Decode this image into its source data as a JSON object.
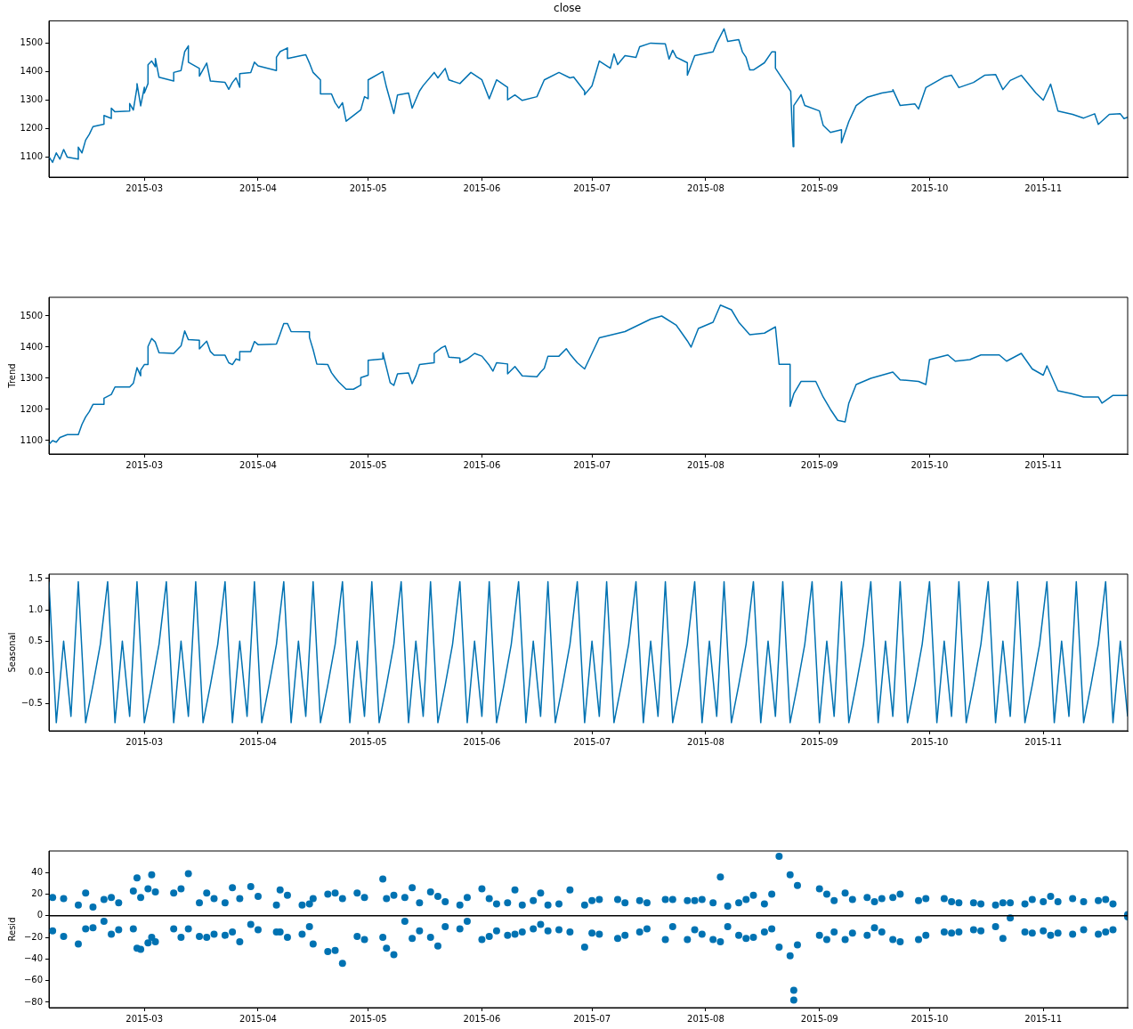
{
  "chart_data": [
    {
      "type": "line",
      "title": "close",
      "color": "#0072b2",
      "xlim": [
        "2015-02-03",
        "2015-11-24"
      ],
      "xticks": [
        "2015-03",
        "2015-04",
        "2015-05",
        "2015-06",
        "2015-07",
        "2015-08",
        "2015-09",
        "2015-10",
        "2015-11"
      ],
      "ylim": [
        1030,
        1578
      ],
      "yticks": [
        1100,
        1200,
        1300,
        1400,
        1500
      ],
      "x": [
        "2015-02-03",
        "2015-02-04",
        "2015-02-05",
        "2015-02-06",
        "2015-02-07",
        "2015-02-08",
        "2015-02-11",
        "2015-02-11",
        "2015-02-12",
        "2015-02-13",
        "2015-02-14",
        "2015-02-15",
        "2015-02-18",
        "2015-02-18",
        "2015-02-20",
        "2015-02-20",
        "2015-02-21",
        "2015-02-25",
        "2015-02-25",
        "2015-02-26",
        "2015-02-27",
        "2015-02-27",
        "2015-02-28",
        "2015-03-01",
        "2015-03-01",
        "2015-03-02",
        "2015-03-02",
        "2015-03-03",
        "2015-03-04",
        "2015-03-04",
        "2015-03-05",
        "2015-03-09",
        "2015-03-09",
        "2015-03-11",
        "2015-03-12",
        "2015-03-13",
        "2015-03-13",
        "2015-03-16",
        "2015-03-16",
        "2015-03-18",
        "2015-03-19",
        "2015-03-23",
        "2015-03-24",
        "2015-03-25",
        "2015-03-26",
        "2015-03-27",
        "2015-03-27",
        "2015-03-30",
        "2015-03-31",
        "2015-04-01",
        "2015-04-06",
        "2015-04-06",
        "2015-04-07",
        "2015-04-09",
        "2015-04-09",
        "2015-04-13",
        "2015-04-14",
        "2015-04-15",
        "2015-04-16",
        "2015-04-18",
        "2015-04-18",
        "2015-04-21",
        "2015-04-22",
        "2015-04-23",
        "2015-04-24",
        "2015-04-25",
        "2015-04-29",
        "2015-04-30",
        "2015-05-01",
        "2015-05-01",
        "2015-05-05",
        "2015-05-06",
        "2015-05-08",
        "2015-05-09",
        "2015-05-12",
        "2015-05-13",
        "2015-05-15",
        "2015-05-16",
        "2015-05-19",
        "2015-05-20",
        "2015-05-22",
        "2015-05-23",
        "2015-05-26",
        "2015-05-29",
        "2015-06-01",
        "2015-06-03",
        "2015-06-05",
        "2015-06-08",
        "2015-06-08",
        "2015-06-10",
        "2015-06-12",
        "2015-06-16",
        "2015-06-18",
        "2015-06-22",
        "2015-06-25",
        "2015-06-26",
        "2015-06-29",
        "2015-06-29",
        "2015-07-01",
        "2015-07-03",
        "2015-07-06",
        "2015-07-07",
        "2015-07-08",
        "2015-07-10",
        "2015-07-13",
        "2015-07-14",
        "2015-07-17",
        "2015-07-21",
        "2015-07-22",
        "2015-07-23",
        "2015-07-24",
        "2015-07-27",
        "2015-07-27",
        "2015-07-29",
        "2015-08-03",
        "2015-08-04",
        "2015-08-06",
        "2015-08-07",
        "2015-08-10",
        "2015-08-11",
        "2015-08-12",
        "2015-08-13",
        "2015-08-14",
        "2015-08-17",
        "2015-08-19",
        "2015-08-20",
        "2015-08-20",
        "2015-08-24T04:00",
        "2015-08-24T12:00",
        "2015-08-24T20:00",
        "2015-08-25",
        "2015-08-27",
        "2015-08-28",
        "2015-09-01",
        "2015-09-02",
        "2015-09-04",
        "2015-09-07",
        "2015-09-07",
        "2015-09-09",
        "2015-09-11",
        "2015-09-14",
        "2015-09-18",
        "2015-09-21",
        "2015-09-21",
        "2015-09-23",
        "2015-09-27",
        "2015-09-28",
        "2015-09-30",
        "2015-10-05",
        "2015-10-07",
        "2015-10-09",
        "2015-10-13",
        "2015-10-16",
        "2015-10-19",
        "2015-10-21",
        "2015-10-23",
        "2015-10-26",
        "2015-10-30",
        "2015-11-01",
        "2015-11-03",
        "2015-11-05",
        "2015-11-09",
        "2015-11-12",
        "2015-11-15",
        "2015-11-16",
        "2015-11-19",
        "2015-11-22",
        "2015-11-23",
        "2015-11-24"
      ],
      "values": [
        1101,
        1082,
        1115,
        1093,
        1127,
        1100,
        1093,
        1135,
        1115,
        1160,
        1180,
        1207,
        1216,
        1246,
        1236,
        1272,
        1259,
        1262,
        1288,
        1265,
        1345,
        1358,
        1280,
        1345,
        1325,
        1358,
        1424,
        1437,
        1417,
        1446,
        1380,
        1367,
        1397,
        1404,
        1470,
        1490,
        1433,
        1411,
        1384,
        1430,
        1367,
        1362,
        1338,
        1362,
        1378,
        1345,
        1393,
        1397,
        1433,
        1420,
        1404,
        1450,
        1470,
        1483,
        1446,
        1457,
        1459,
        1430,
        1397,
        1371,
        1322,
        1322,
        1291,
        1272,
        1291,
        1226,
        1266,
        1312,
        1305,
        1371,
        1400,
        1345,
        1253,
        1318,
        1325,
        1272,
        1332,
        1351,
        1397,
        1378,
        1411,
        1371,
        1358,
        1397,
        1371,
        1305,
        1371,
        1345,
        1301,
        1318,
        1299,
        1312,
        1371,
        1397,
        1378,
        1381,
        1331,
        1319,
        1350,
        1437,
        1412,
        1462,
        1425,
        1456,
        1450,
        1487,
        1500,
        1497,
        1444,
        1475,
        1450,
        1431,
        1387,
        1456,
        1469,
        1500,
        1550,
        1506,
        1512,
        1469,
        1450,
        1406,
        1406,
        1431,
        1469,
        1469,
        1412,
        1331,
        1225,
        1137,
        1281,
        1319,
        1281,
        1262,
        1212,
        1187,
        1196,
        1150,
        1225,
        1281,
        1310,
        1325,
        1331,
        1337,
        1281,
        1287,
        1269,
        1344,
        1381,
        1387,
        1344,
        1362,
        1387,
        1390,
        1337,
        1369,
        1387,
        1325,
        1300,
        1356,
        1262,
        1250,
        1237,
        1252,
        1215,
        1250,
        1252,
        1235,
        1240
      ]
    },
    {
      "type": "line",
      "ylabel": "Trend",
      "color": "#0072b2",
      "xlim": [
        "2015-02-03",
        "2015-11-24"
      ],
      "xticks": [
        "2015-03",
        "2015-04",
        "2015-05",
        "2015-06",
        "2015-07",
        "2015-08",
        "2015-09",
        "2015-10",
        "2015-11"
      ],
      "ylim": [
        1057,
        1560
      ],
      "yticks": [
        1100,
        1200,
        1300,
        1400,
        1500
      ],
      "x": [
        "2015-02-03",
        "2015-02-04",
        "2015-02-05",
        "2015-02-06",
        "2015-02-08",
        "2015-02-11",
        "2015-02-12",
        "2015-02-13",
        "2015-02-14",
        "2015-02-15",
        "2015-02-18",
        "2015-02-18",
        "2015-02-20",
        "2015-02-21",
        "2015-02-25",
        "2015-02-26",
        "2015-02-27",
        "2015-02-28",
        "2015-02-28",
        "2015-03-01",
        "2015-03-02",
        "2015-03-02",
        "2015-03-03",
        "2015-03-04",
        "2015-03-05",
        "2015-03-09",
        "2015-03-11",
        "2015-03-12",
        "2015-03-13",
        "2015-03-16",
        "2015-03-16",
        "2015-03-18",
        "2015-03-19",
        "2015-03-20",
        "2015-03-23",
        "2015-03-24",
        "2015-03-25",
        "2015-03-26",
        "2015-03-27",
        "2015-03-27",
        "2015-03-30",
        "2015-03-31",
        "2015-04-01",
        "2015-04-06",
        "2015-04-07",
        "2015-04-08",
        "2015-04-09",
        "2015-04-10",
        "2015-04-15",
        "2015-04-15",
        "2015-04-16",
        "2015-04-17",
        "2015-04-20",
        "2015-04-21",
        "2015-04-22",
        "2015-04-23",
        "2015-04-25",
        "2015-04-27",
        "2015-04-29",
        "2015-04-29",
        "2015-05-01",
        "2015-05-01",
        "2015-05-05",
        "2015-05-05",
        "2015-05-06",
        "2015-05-07",
        "2015-05-08",
        "2015-05-09",
        "2015-05-12",
        "2015-05-13",
        "2015-05-14",
        "2015-05-15",
        "2015-05-19",
        "2015-05-19",
        "2015-05-21",
        "2015-05-22",
        "2015-05-23",
        "2015-05-26",
        "2015-05-26",
        "2015-05-28",
        "2015-05-30",
        "2015-06-01",
        "2015-06-03",
        "2015-06-04",
        "2015-06-05",
        "2015-06-08",
        "2015-06-08",
        "2015-06-10",
        "2015-06-12",
        "2015-06-16",
        "2015-06-17",
        "2015-06-18",
        "2015-06-19",
        "2015-06-22",
        "2015-06-24",
        "2015-06-25",
        "2015-06-27",
        "2015-06-29",
        "2015-07-03",
        "2015-07-10",
        "2015-07-17",
        "2015-07-20",
        "2015-07-24",
        "2015-07-27",
        "2015-07-28",
        "2015-07-30",
        "2015-08-03",
        "2015-08-05",
        "2015-08-08",
        "2015-08-10",
        "2015-08-13",
        "2015-08-17",
        "2015-08-20",
        "2015-08-21",
        "2015-08-24",
        "2015-08-24",
        "2015-08-25",
        "2015-08-27",
        "2015-08-31",
        "2015-09-02",
        "2015-09-04",
        "2015-09-06",
        "2015-09-08",
        "2015-09-09",
        "2015-09-11",
        "2015-09-15",
        "2015-09-18",
        "2015-09-21",
        "2015-09-23",
        "2015-09-28",
        "2015-09-30",
        "2015-10-01",
        "2015-10-06",
        "2015-10-08",
        "2015-10-12",
        "2015-10-15",
        "2015-10-20",
        "2015-10-22",
        "2015-10-26",
        "2015-10-29",
        "2015-11-01",
        "2015-11-02",
        "2015-11-05",
        "2015-11-09",
        "2015-11-12",
        "2015-11-16",
        "2015-11-17",
        "2015-11-20",
        "2015-11-24"
      ],
      "values": [
        1088,
        1100,
        1095,
        1110,
        1119,
        1119,
        1152,
        1176,
        1193,
        1216,
        1216,
        1236,
        1248,
        1272,
        1272,
        1284,
        1334,
        1308,
        1326,
        1344,
        1344,
        1402,
        1428,
        1416,
        1382,
        1380,
        1404,
        1452,
        1424,
        1422,
        1394,
        1419,
        1386,
        1374,
        1374,
        1350,
        1344,
        1362,
        1358,
        1386,
        1386,
        1418,
        1408,
        1410,
        1442,
        1476,
        1476,
        1450,
        1449,
        1431,
        1392,
        1346,
        1344,
        1318,
        1302,
        1288,
        1265,
        1265,
        1278,
        1302,
        1310,
        1358,
        1362,
        1382,
        1334,
        1286,
        1277,
        1314,
        1317,
        1283,
        1308,
        1344,
        1350,
        1380,
        1398,
        1404,
        1368,
        1365,
        1350,
        1362,
        1380,
        1371,
        1342,
        1323,
        1350,
        1346,
        1314,
        1338,
        1308,
        1305,
        1320,
        1332,
        1371,
        1371,
        1395,
        1378,
        1350,
        1330,
        1430,
        1450,
        1490,
        1500,
        1470,
        1420,
        1400,
        1460,
        1480,
        1535,
        1520,
        1480,
        1440,
        1445,
        1465,
        1345,
        1345,
        1210,
        1250,
        1290,
        1290,
        1240,
        1200,
        1165,
        1160,
        1220,
        1280,
        1300,
        1310,
        1320,
        1295,
        1290,
        1280,
        1360,
        1375,
        1355,
        1360,
        1375,
        1375,
        1355,
        1380,
        1330,
        1310,
        1340,
        1260,
        1250,
        1240,
        1240,
        1220,
        1245,
        1245
      ]
    },
    {
      "type": "line",
      "ylabel": "Seasonal",
      "color": "#0072b2",
      "xlim": [
        "2015-02-03",
        "2015-11-24"
      ],
      "xticks": [
        "2015-03",
        "2015-04",
        "2015-05",
        "2015-06",
        "2015-07",
        "2015-08",
        "2015-09",
        "2015-10",
        "2015-11"
      ],
      "ylim": [
        -0.93,
        1.57
      ],
      "yticks": [
        {
          "value": -0.5,
          "label": "−0.5"
        },
        {
          "value": 0,
          "label": "0.0"
        },
        0.5,
        {
          "value": 1,
          "label": "1.0"
        },
        1.5
      ],
      "x": [
        "2015-02-03",
        "2015-02-05",
        "2015-02-07",
        "2015-02-09",
        "2015-02-11",
        "2015-02-13",
        "2015-02-15",
        "2015-02-17",
        "2015-02-19",
        "2015-02-21",
        "2015-02-23",
        "2015-02-25",
        "2015-02-27",
        "2015-03-01",
        "2015-03-03",
        "2015-03-05",
        "2015-03-07",
        "2015-03-09",
        "2015-03-11",
        "2015-03-13",
        "2015-03-15",
        "2015-03-17",
        "2015-03-19",
        "2015-03-21",
        "2015-03-23",
        "2015-03-25",
        "2015-03-27",
        "2015-03-29",
        "2015-03-31",
        "2015-04-02",
        "2015-04-04",
        "2015-04-06",
        "2015-04-08",
        "2015-04-10",
        "2015-04-12",
        "2015-04-14",
        "2015-04-16",
        "2015-04-18",
        "2015-04-20",
        "2015-04-22",
        "2015-04-24",
        "2015-04-26",
        "2015-04-28",
        "2015-04-30",
        "2015-05-02",
        "2015-05-04",
        "2015-05-06",
        "2015-05-08",
        "2015-05-10",
        "2015-05-12",
        "2015-05-14",
        "2015-05-16",
        "2015-05-18",
        "2015-05-20",
        "2015-05-22",
        "2015-05-24",
        "2015-05-26",
        "2015-05-28",
        "2015-05-30",
        "2015-06-01",
        "2015-06-03",
        "2015-06-05",
        "2015-06-07",
        "2015-06-09",
        "2015-06-11",
        "2015-06-13",
        "2015-06-15",
        "2015-06-17",
        "2015-06-19",
        "2015-06-21",
        "2015-06-23",
        "2015-06-25",
        "2015-06-27",
        "2015-06-29",
        "2015-07-01",
        "2015-07-03",
        "2015-07-05",
        "2015-07-07",
        "2015-07-09",
        "2015-07-11",
        "2015-07-13",
        "2015-07-15",
        "2015-07-17",
        "2015-07-19",
        "2015-07-21",
        "2015-07-23",
        "2015-07-25",
        "2015-07-27",
        "2015-07-29",
        "2015-07-31",
        "2015-08-02",
        "2015-08-04",
        "2015-08-06",
        "2015-08-08",
        "2015-08-10",
        "2015-08-12",
        "2015-08-14",
        "2015-08-16",
        "2015-08-18",
        "2015-08-20",
        "2015-08-22",
        "2015-08-24",
        "2015-08-26",
        "2015-08-28",
        "2015-08-30",
        "2015-09-01",
        "2015-09-03",
        "2015-09-05",
        "2015-09-07",
        "2015-09-09",
        "2015-09-11",
        "2015-09-13",
        "2015-09-15",
        "2015-09-17",
        "2015-09-19",
        "2015-09-21",
        "2015-09-23",
        "2015-09-25",
        "2015-09-27",
        "2015-09-29",
        "2015-10-01",
        "2015-10-03",
        "2015-10-05",
        "2015-10-07",
        "2015-10-09",
        "2015-10-11",
        "2015-10-13",
        "2015-10-15",
        "2015-10-17",
        "2015-10-19",
        "2015-10-21",
        "2015-10-23",
        "2015-10-25",
        "2015-10-27",
        "2015-10-29",
        "2015-10-31",
        "2015-11-02",
        "2015-11-04",
        "2015-11-06",
        "2015-11-08",
        "2015-11-10",
        "2015-11-12",
        "2015-11-14",
        "2015-11-16",
        "2015-11-18",
        "2015-11-20",
        "2015-11-22",
        "2015-11-24"
      ],
      "values": [
        1.45,
        -0.8,
        0.5,
        -0.7,
        1.45,
        -0.8,
        -0.2,
        0.45,
        1.45,
        -0.8,
        0.5,
        -0.7,
        1.45,
        -0.8,
        -0.2,
        0.45,
        1.45,
        -0.8,
        0.5,
        -0.7,
        1.45,
        -0.8,
        -0.2,
        0.45,
        1.45,
        -0.8,
        0.5,
        -0.7,
        1.45,
        -0.8,
        -0.2,
        0.45,
        1.45,
        -0.8,
        0.5,
        -0.7,
        1.45,
        -0.8,
        -0.2,
        0.45,
        1.45,
        -0.8,
        0.5,
        -0.7,
        1.45,
        -0.8,
        -0.2,
        0.45,
        1.45,
        -0.8,
        0.5,
        -0.7,
        1.45,
        -0.8,
        -0.2,
        0.45,
        1.45,
        -0.8,
        0.5,
        -0.7,
        1.45,
        -0.8,
        -0.2,
        0.45,
        1.45,
        -0.8,
        0.5,
        -0.7,
        1.45,
        -0.8,
        -0.2,
        0.45,
        1.45,
        -0.8,
        0.5,
        -0.7,
        1.45,
        -0.8,
        -0.2,
        0.45,
        1.45,
        -0.8,
        0.5,
        -0.7,
        1.45,
        -0.8,
        -0.2,
        0.45,
        1.45,
        -0.8,
        0.5,
        -0.7,
        1.45,
        -0.8,
        -0.2,
        0.45,
        1.45,
        -0.8,
        0.5,
        -0.7,
        1.45,
        -0.8,
        -0.2,
        0.45,
        1.45,
        -0.8,
        0.5,
        -0.7,
        1.45,
        -0.8,
        -0.2,
        0.45,
        1.45,
        -0.8,
        0.5,
        -0.7,
        1.45,
        -0.8,
        -0.2,
        0.45,
        1.45,
        -0.8,
        0.5,
        -0.7,
        1.45,
        -0.8,
        -0.2,
        0.45,
        1.45,
        -0.8,
        0.5,
        -0.7,
        1.45,
        -0.8,
        -0.2,
        0.45,
        1.45,
        -0.8,
        0.5,
        -0.7,
        1.45,
        -0.8,
        -0.2,
        0.45,
        1.45,
        -0.8,
        0.5,
        -0.7
      ]
    },
    {
      "type": "scatter",
      "ylabel": "Resid",
      "color": "#0072b2",
      "marker": "circle",
      "xlim": [
        "2015-02-03",
        "2015-11-24"
      ],
      "xticks": [
        "2015-03",
        "2015-04",
        "2015-05",
        "2015-06",
        "2015-07",
        "2015-08",
        "2015-09",
        "2015-10",
        "2015-11"
      ],
      "ylim": [
        -85,
        60
      ],
      "yticks": [
        {
          "value": -80,
          "label": "−80"
        },
        {
          "value": -60,
          "label": "−60"
        },
        {
          "value": -40,
          "label": "−40"
        },
        {
          "value": -20,
          "label": "−20"
        },
        0,
        20,
        40
      ],
      "ref_lines": [
        {
          "axis": "y",
          "value": 0,
          "color": "#000000"
        }
      ],
      "x": [
        "2015-02-04",
        "2015-02-04",
        "2015-02-07",
        "2015-02-07",
        "2015-02-11",
        "2015-02-11",
        "2015-02-13",
        "2015-02-13",
        "2015-02-15",
        "2015-02-15",
        "2015-02-18",
        "2015-02-18",
        "2015-02-20",
        "2015-02-20",
        "2015-02-22",
        "2015-02-22",
        "2015-02-26",
        "2015-02-26",
        "2015-02-27",
        "2015-02-27",
        "2015-02-28",
        "2015-02-28",
        "2015-03-02",
        "2015-03-02",
        "2015-03-03",
        "2015-03-03",
        "2015-03-04",
        "2015-03-04",
        "2015-03-09",
        "2015-03-09",
        "2015-03-11",
        "2015-03-11",
        "2015-03-13",
        "2015-03-13",
        "2015-03-16",
        "2015-03-16",
        "2015-03-18",
        "2015-03-18",
        "2015-03-20",
        "2015-03-20",
        "2015-03-23",
        "2015-03-23",
        "2015-03-25",
        "2015-03-25",
        "2015-03-27",
        "2015-03-27",
        "2015-03-30",
        "2015-03-30",
        "2015-04-01",
        "2015-04-01",
        "2015-04-06",
        "2015-04-06",
        "2015-04-07",
        "2015-04-07",
        "2015-04-09",
        "2015-04-09",
        "2015-04-13",
        "2015-04-13",
        "2015-04-15",
        "2015-04-15",
        "2015-04-16",
        "2015-04-16",
        "2015-04-20",
        "2015-04-20",
        "2015-04-22",
        "2015-04-22",
        "2015-04-24",
        "2015-04-24",
        "2015-04-28",
        "2015-04-28",
        "2015-04-30",
        "2015-04-30",
        "2015-05-05",
        "2015-05-05",
        "2015-05-06",
        "2015-05-06",
        "2015-05-08",
        "2015-05-08",
        "2015-05-11",
        "2015-05-11",
        "2015-05-13",
        "2015-05-13",
        "2015-05-15",
        "2015-05-15",
        "2015-05-18",
        "2015-05-18",
        "2015-05-20",
        "2015-05-20",
        "2015-05-22",
        "2015-05-22",
        "2015-05-26",
        "2015-05-26",
        "2015-05-28",
        "2015-05-28",
        "2015-06-01",
        "2015-06-01",
        "2015-06-03",
        "2015-06-03",
        "2015-06-05",
        "2015-06-05",
        "2015-06-08",
        "2015-06-08",
        "2015-06-10",
        "2015-06-10",
        "2015-06-12",
        "2015-06-12",
        "2015-06-15",
        "2015-06-15",
        "2015-06-17",
        "2015-06-17",
        "2015-06-19",
        "2015-06-19",
        "2015-06-22",
        "2015-06-22",
        "2015-06-25",
        "2015-06-25",
        "2015-06-29",
        "2015-06-29",
        "2015-07-01",
        "2015-07-01",
        "2015-07-03",
        "2015-07-03",
        "2015-07-08",
        "2015-07-08",
        "2015-07-10",
        "2015-07-10",
        "2015-07-14",
        "2015-07-14",
        "2015-07-16",
        "2015-07-16",
        "2015-07-21",
        "2015-07-21",
        "2015-07-23",
        "2015-07-23",
        "2015-07-27",
        "2015-07-27",
        "2015-07-29",
        "2015-07-29",
        "2015-07-31",
        "2015-07-31",
        "2015-08-03",
        "2015-08-03",
        "2015-08-05",
        "2015-08-05",
        "2015-08-07",
        "2015-08-07",
        "2015-08-10",
        "2015-08-10",
        "2015-08-12",
        "2015-08-12",
        "2015-08-14",
        "2015-08-14",
        "2015-08-17",
        "2015-08-17",
        "2015-08-19",
        "2015-08-19",
        "2015-08-21",
        "2015-08-21",
        "2015-08-24",
        "2015-08-24",
        "2015-08-25",
        "2015-08-25",
        "2015-08-26",
        "2015-08-26",
        "2015-09-01",
        "2015-09-01",
        "2015-09-03",
        "2015-09-03",
        "2015-09-05",
        "2015-09-05",
        "2015-09-08",
        "2015-09-08",
        "2015-09-10",
        "2015-09-10",
        "2015-09-14",
        "2015-09-14",
        "2015-09-16",
        "2015-09-16",
        "2015-09-18",
        "2015-09-18",
        "2015-09-21",
        "2015-09-21",
        "2015-09-23",
        "2015-09-23",
        "2015-09-28",
        "2015-09-28",
        "2015-09-30",
        "2015-09-30",
        "2015-10-05",
        "2015-10-05",
        "2015-10-07",
        "2015-10-07",
        "2015-10-09",
        "2015-10-09",
        "2015-10-13",
        "2015-10-13",
        "2015-10-15",
        "2015-10-15",
        "2015-10-19",
        "2015-10-19",
        "2015-10-21",
        "2015-10-21",
        "2015-10-23",
        "2015-10-23",
        "2015-10-27",
        "2015-10-27",
        "2015-10-29",
        "2015-10-29",
        "2015-11-01",
        "2015-11-01",
        "2015-11-03",
        "2015-11-03",
        "2015-11-05",
        "2015-11-05",
        "2015-11-09",
        "2015-11-09",
        "2015-11-12",
        "2015-11-12",
        "2015-11-16",
        "2015-11-16",
        "2015-11-18",
        "2015-11-18",
        "2015-11-20",
        "2015-11-20",
        "2015-11-24",
        "2015-11-24"
      ],
      "values": [
        17,
        -14,
        16,
        -19,
        10,
        -26,
        21,
        -12,
        8,
        -11,
        15,
        -5,
        17,
        -17,
        12,
        -13,
        23,
        -12,
        35,
        -30,
        17,
        -31,
        25,
        -25,
        38,
        -20,
        22,
        -24,
        21,
        -12,
        25,
        -20,
        39,
        -12,
        12,
        -19,
        21,
        -20,
        16,
        -17,
        12,
        -18,
        26,
        -15,
        16,
        -24,
        27,
        -8,
        18,
        -13,
        10,
        -15,
        24,
        -15,
        19,
        -20,
        10,
        -17,
        11,
        -10,
        16,
        -26,
        20,
        -33,
        21,
        -32,
        16,
        -44,
        21,
        -19,
        17,
        -22,
        34,
        -20,
        16,
        -30,
        19,
        -36,
        17,
        -5,
        26,
        -21,
        12,
        -14,
        22,
        -20,
        18,
        -28,
        13,
        -10,
        10,
        -12,
        17,
        -5,
        25,
        -22,
        16,
        -19,
        11,
        -14,
        12,
        -18,
        24,
        -17,
        10,
        -15,
        14,
        -12,
        21,
        -8,
        10,
        -14,
        11,
        -13,
        24,
        -15,
        10,
        -29,
        14,
        -16,
        15,
        -17,
        15,
        -21,
        12,
        -18,
        14,
        -15,
        12,
        -12,
        15,
        -22,
        15,
        -10,
        14,
        -22,
        14,
        -13,
        15,
        -17,
        12,
        -22,
        36,
        -24,
        9,
        -10,
        12,
        -18,
        15,
        -21,
        19,
        -20,
        11,
        -15,
        20,
        -12,
        55,
        -29,
        38,
        -37,
        -69,
        -78,
        28,
        -27,
        25,
        -18,
        20,
        -22,
        14,
        -15,
        21,
        -22,
        15,
        -16,
        17,
        -18,
        13,
        -11,
        16,
        -15,
        17,
        -22,
        20,
        -24,
        14,
        -22,
        16,
        -18,
        16,
        -15,
        13,
        -16,
        12,
        -15,
        12,
        -13,
        11,
        -14,
        10,
        -10,
        12,
        -21,
        12,
        -2,
        11,
        -15,
        15,
        -16,
        13,
        -14,
        18,
        -18,
        13,
        -16,
        16,
        -17,
        13,
        -13,
        14,
        -17,
        15,
        -15,
        11,
        -13,
        1,
        -1
      ]
    }
  ]
}
